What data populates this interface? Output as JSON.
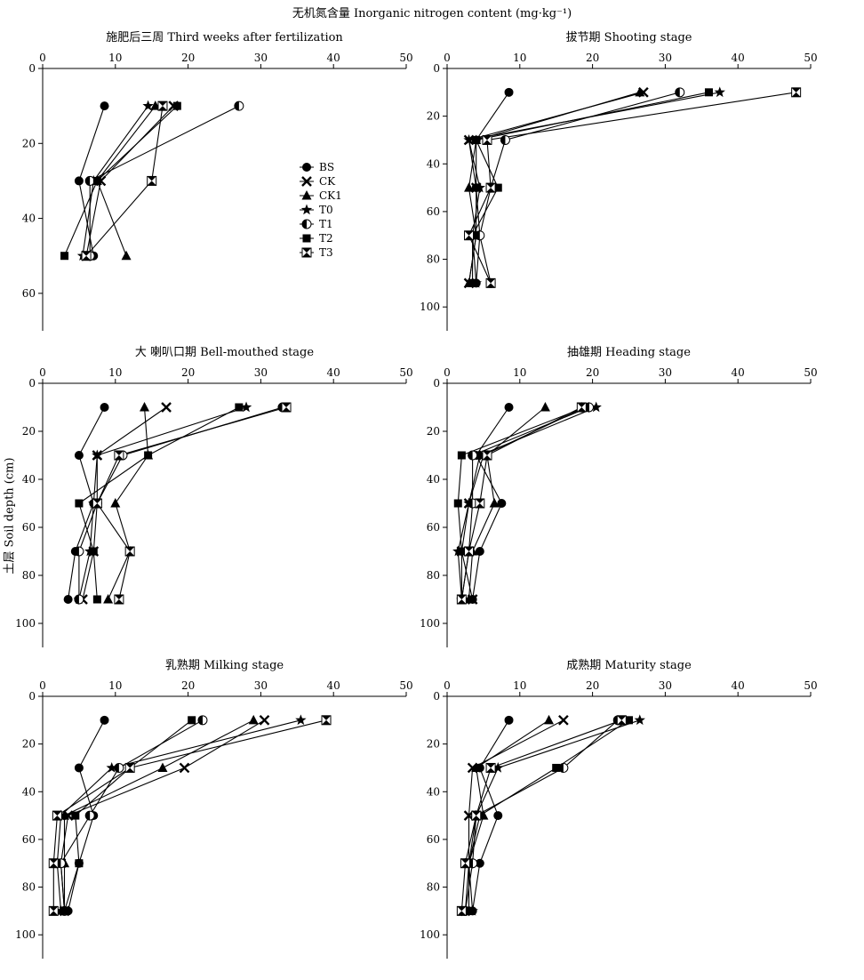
{
  "figure_title": "无机氮含量 Inorganic nitrogen content (mg·kg⁻¹)",
  "y_axis_label": "土层 Soil depth (cm)",
  "legend": [
    {
      "name": "BS",
      "marker": "circle"
    },
    {
      "name": "CK",
      "marker": "x"
    },
    {
      "name": "CK1",
      "marker": "triangle"
    },
    {
      "name": "T0",
      "marker": "star"
    },
    {
      "name": "T1",
      "marker": "half-circle"
    },
    {
      "name": "T2",
      "marker": "square"
    },
    {
      "name": "T3",
      "marker": "hourglass"
    }
  ],
  "chart_data": [
    {
      "type": "line",
      "title": "施肥后三周 Third weeks after fertilization",
      "xlim": [
        0,
        50
      ],
      "x_ticks": [
        0,
        10,
        20,
        30,
        40,
        50
      ],
      "ylim": [
        0,
        70
      ],
      "y_ticks": [
        0,
        20,
        40,
        60
      ],
      "legend_position": "right",
      "series": [
        {
          "name": "BS",
          "points": [
            [
              8.5,
              10
            ],
            [
              5,
              30
            ],
            [
              7,
              50
            ]
          ]
        },
        {
          "name": "CK",
          "points": [
            [
              18,
              10
            ],
            [
              8,
              30
            ],
            [
              6,
              50
            ]
          ]
        },
        {
          "name": "CK1",
          "points": [
            [
              15.5,
              10
            ],
            [
              7.5,
              30
            ],
            [
              11.5,
              50
            ]
          ]
        },
        {
          "name": "T0",
          "points": [
            [
              14.5,
              10
            ],
            [
              7,
              30
            ],
            [
              5.5,
              50
            ]
          ]
        },
        {
          "name": "T1",
          "points": [
            [
              27,
              10
            ],
            [
              6.5,
              30
            ],
            [
              6.5,
              50
            ]
          ]
        },
        {
          "name": "T2",
          "points": [
            [
              18.5,
              10
            ],
            [
              7.5,
              30
            ],
            [
              3,
              50
            ]
          ]
        },
        {
          "name": "T3",
          "points": [
            [
              16.5,
              10
            ],
            [
              15,
              30
            ],
            [
              6,
              50
            ]
          ]
        }
      ]
    },
    {
      "type": "line",
      "title": "拔节期 Shooting stage",
      "xlim": [
        0,
        50
      ],
      "x_ticks": [
        0,
        10,
        20,
        30,
        40,
        50
      ],
      "ylim": [
        0,
        110
      ],
      "y_ticks": [
        0,
        20,
        40,
        60,
        80,
        100
      ],
      "series": [
        {
          "name": "BS",
          "points": [
            [
              8.5,
              10
            ],
            [
              4,
              30
            ],
            [
              4,
              50
            ],
            [
              4.5,
              70
            ],
            [
              4,
              90
            ]
          ]
        },
        {
          "name": "CK",
          "points": [
            [
              27,
              10
            ],
            [
              3,
              30
            ],
            [
              4,
              50
            ],
            [
              4,
              70
            ],
            [
              3,
              90
            ]
          ]
        },
        {
          "name": "CK1",
          "points": [
            [
              26.5,
              10
            ],
            [
              4,
              30
            ],
            [
              3,
              50
            ],
            [
              4,
              70
            ],
            [
              3,
              90
            ]
          ]
        },
        {
          "name": "T0",
          "points": [
            [
              37.5,
              10
            ],
            [
              3,
              30
            ],
            [
              4.5,
              50
            ],
            [
              3.5,
              70
            ],
            [
              4,
              90
            ]
          ]
        },
        {
          "name": "T1",
          "points": [
            [
              32,
              10
            ],
            [
              8,
              30
            ],
            [
              6,
              50
            ],
            [
              4.5,
              70
            ],
            [
              6,
              90
            ]
          ]
        },
        {
          "name": "T2",
          "points": [
            [
              36,
              10
            ],
            [
              4,
              30
            ],
            [
              7,
              50
            ],
            [
              3.5,
              70
            ],
            [
              3.5,
              90
            ]
          ]
        },
        {
          "name": "T3",
          "points": [
            [
              48,
              10
            ],
            [
              5.5,
              30
            ],
            [
              6,
              50
            ],
            [
              3,
              70
            ],
            [
              6,
              90
            ]
          ]
        }
      ]
    },
    {
      "type": "line",
      "title": "大 喇叭口期 Bell-mouthed stage",
      "xlim": [
        0,
        50
      ],
      "x_ticks": [
        0,
        10,
        20,
        30,
        40,
        50
      ],
      "ylim": [
        0,
        110
      ],
      "y_ticks": [
        0,
        20,
        40,
        60,
        80,
        100
      ],
      "series": [
        {
          "name": "BS",
          "points": [
            [
              8.5,
              10
            ],
            [
              5,
              30
            ],
            [
              7,
              50
            ],
            [
              4.5,
              70
            ],
            [
              3.5,
              90
            ]
          ]
        },
        {
          "name": "CK",
          "points": [
            [
              17,
              10
            ],
            [
              7.5,
              30
            ],
            [
              7.5,
              50
            ],
            [
              7,
              70
            ],
            [
              5.5,
              90
            ]
          ]
        },
        {
          "name": "CK1",
          "points": [
            [
              14,
              10
            ],
            [
              14.5,
              30
            ],
            [
              10,
              50
            ],
            [
              12,
              70
            ],
            [
              9,
              90
            ]
          ]
        },
        {
          "name": "T0",
          "points": [
            [
              28,
              10
            ],
            [
              7.5,
              30
            ],
            [
              7,
              50
            ],
            [
              6.5,
              70
            ],
            [
              5,
              90
            ]
          ]
        },
        {
          "name": "T1",
          "points": [
            [
              33,
              10
            ],
            [
              11,
              30
            ],
            [
              7.5,
              50
            ],
            [
              5,
              70
            ],
            [
              5,
              90
            ]
          ]
        },
        {
          "name": "T2",
          "points": [
            [
              27,
              10
            ],
            [
              14.5,
              30
            ],
            [
              5,
              50
            ],
            [
              7,
              70
            ],
            [
              7.5,
              90
            ]
          ]
        },
        {
          "name": "T3",
          "points": [
            [
              33.5,
              10
            ],
            [
              10.5,
              30
            ],
            [
              7.5,
              50
            ],
            [
              12,
              70
            ],
            [
              10.5,
              90
            ]
          ]
        }
      ]
    },
    {
      "type": "line",
      "title": "抽雄期 Heading stage",
      "xlim": [
        0,
        50
      ],
      "x_ticks": [
        0,
        10,
        20,
        30,
        40,
        50
      ],
      "ylim": [
        0,
        110
      ],
      "y_ticks": [
        0,
        20,
        40,
        60,
        80,
        100
      ],
      "series": [
        {
          "name": "BS",
          "points": [
            [
              8.5,
              10
            ],
            [
              4,
              30
            ],
            [
              7.5,
              50
            ],
            [
              4.5,
              70
            ],
            [
              3.5,
              90
            ]
          ]
        },
        {
          "name": "CK",
          "points": [
            [
              19,
              10
            ],
            [
              5,
              30
            ],
            [
              3,
              50
            ],
            [
              2,
              70
            ],
            [
              3.5,
              90
            ]
          ]
        },
        {
          "name": "CK1",
          "points": [
            [
              13.5,
              10
            ],
            [
              5.5,
              30
            ],
            [
              6.5,
              50
            ],
            [
              3.5,
              70
            ],
            [
              3,
              90
            ]
          ]
        },
        {
          "name": "T0",
          "points": [
            [
              20.5,
              10
            ],
            [
              4.5,
              30
            ],
            [
              3,
              50
            ],
            [
              1.5,
              70
            ],
            [
              2,
              90
            ]
          ]
        },
        {
          "name": "T1",
          "points": [
            [
              19.5,
              10
            ],
            [
              3.5,
              30
            ],
            [
              3.5,
              50
            ],
            [
              3,
              70
            ],
            [
              2,
              90
            ]
          ]
        },
        {
          "name": "T2",
          "points": [
            [
              19,
              10
            ],
            [
              2,
              30
            ],
            [
              1.5,
              50
            ],
            [
              2,
              70
            ],
            [
              2,
              90
            ]
          ]
        },
        {
          "name": "T3",
          "points": [
            [
              18.5,
              10
            ],
            [
              5.5,
              30
            ],
            [
              4.5,
              50
            ],
            [
              3,
              70
            ],
            [
              2,
              90
            ]
          ]
        }
      ]
    },
    {
      "type": "line",
      "title": "乳熟期 Milking stage",
      "xlim": [
        0,
        50
      ],
      "x_ticks": [
        0,
        10,
        20,
        30,
        40,
        50
      ],
      "ylim": [
        0,
        110
      ],
      "y_ticks": [
        0,
        20,
        40,
        60,
        80,
        100
      ],
      "series": [
        {
          "name": "BS",
          "points": [
            [
              8.5,
              10
            ],
            [
              5,
              30
            ],
            [
              7,
              50
            ],
            [
              5,
              70
            ],
            [
              3.5,
              90
            ]
          ]
        },
        {
          "name": "CK",
          "points": [
            [
              30.5,
              10
            ],
            [
              19.5,
              30
            ],
            [
              3.5,
              50
            ],
            [
              2.5,
              70
            ],
            [
              3,
              90
            ]
          ]
        },
        {
          "name": "CK1",
          "points": [
            [
              29,
              10
            ],
            [
              16.5,
              30
            ],
            [
              3,
              50
            ],
            [
              3,
              70
            ],
            [
              3,
              90
            ]
          ]
        },
        {
          "name": "T0",
          "points": [
            [
              35.5,
              10
            ],
            [
              9.5,
              30
            ],
            [
              2.5,
              50
            ],
            [
              2,
              70
            ],
            [
              2.5,
              90
            ]
          ]
        },
        {
          "name": "T1",
          "points": [
            [
              22,
              10
            ],
            [
              10.5,
              30
            ],
            [
              6.5,
              50
            ],
            [
              2.5,
              70
            ],
            [
              3,
              90
            ]
          ]
        },
        {
          "name": "T2",
          "points": [
            [
              20.5,
              10
            ],
            [
              12,
              30
            ],
            [
              4.5,
              50
            ],
            [
              5,
              70
            ],
            [
              3,
              90
            ]
          ]
        },
        {
          "name": "T3",
          "points": [
            [
              39,
              10
            ],
            [
              12,
              30
            ],
            [
              2,
              50
            ],
            [
              1.5,
              70
            ],
            [
              1.5,
              90
            ]
          ]
        }
      ]
    },
    {
      "type": "line",
      "title": "成熟期 Maturity stage",
      "xlim": [
        0,
        50
      ],
      "x_ticks": [
        0,
        10,
        20,
        30,
        40,
        50
      ],
      "ylim": [
        0,
        110
      ],
      "y_ticks": [
        0,
        20,
        40,
        60,
        80,
        100
      ],
      "series": [
        {
          "name": "BS",
          "points": [
            [
              8.5,
              10
            ],
            [
              4.5,
              30
            ],
            [
              7,
              50
            ],
            [
              4.5,
              70
            ],
            [
              3.5,
              90
            ]
          ]
        },
        {
          "name": "CK",
          "points": [
            [
              16,
              10
            ],
            [
              3.5,
              30
            ],
            [
              3,
              50
            ],
            [
              3,
              70
            ],
            [
              2.5,
              90
            ]
          ]
        },
        {
          "name": "CK1",
          "points": [
            [
              14,
              10
            ],
            [
              4,
              30
            ],
            [
              5,
              50
            ],
            [
              3,
              70
            ],
            [
              3,
              90
            ]
          ]
        },
        {
          "name": "T0",
          "points": [
            [
              26.5,
              10
            ],
            [
              7,
              30
            ],
            [
              4,
              50
            ],
            [
              3,
              70
            ],
            [
              3.5,
              90
            ]
          ]
        },
        {
          "name": "T1",
          "points": [
            [
              23.5,
              10
            ],
            [
              16,
              30
            ],
            [
              4,
              50
            ],
            [
              3.5,
              70
            ],
            [
              2.5,
              90
            ]
          ]
        },
        {
          "name": "T2",
          "points": [
            [
              25,
              10
            ],
            [
              15,
              30
            ],
            [
              4.5,
              50
            ],
            [
              3,
              70
            ],
            [
              3,
              90
            ]
          ]
        },
        {
          "name": "T3",
          "points": [
            [
              24,
              10
            ],
            [
              6,
              30
            ],
            [
              4,
              50
            ],
            [
              2.5,
              70
            ],
            [
              2,
              90
            ]
          ]
        }
      ]
    }
  ]
}
